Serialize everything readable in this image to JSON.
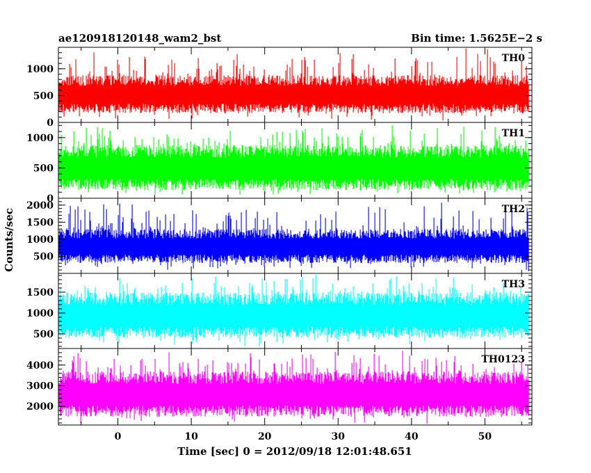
{
  "header": {
    "left": "ae120918120148_wam2_bst",
    "right": "Bin time: 1.5625E−2 s"
  },
  "ylabel": "Counts/sec",
  "xlabel": "Time [sec] 0 = 2012/09/18 12:01:48.651",
  "chart_data": [
    {
      "type": "line",
      "series_name": "TH0",
      "color": "#ff0000",
      "xlim": [
        -8.1,
        56.4
      ],
      "ylim": [
        0,
        1400
      ],
      "yticks": [
        0,
        500,
        1000
      ],
      "ytick_labels": [
        "0",
        "500",
        "1000"
      ],
      "baseline_range": [
        170,
        880
      ],
      "spike_max": 1400,
      "bin_time": 0.015625
    },
    {
      "type": "line",
      "series_name": "TH1",
      "color": "#00ff00",
      "xlim": [
        -8.1,
        56.4
      ],
      "ylim": [
        0,
        1250
      ],
      "yticks": [
        0,
        500,
        1000
      ],
      "ytick_labels": [
        "0",
        "500",
        "1000"
      ],
      "baseline_range": [
        130,
        880
      ],
      "spike_max": 1250,
      "bin_time": 0.015625
    },
    {
      "type": "line",
      "series_name": "TH2",
      "color": "#0000ff",
      "xlim": [
        -8.1,
        56.4
      ],
      "ylim": [
        0,
        2200
      ],
      "yticks": [
        500,
        1000,
        1500,
        2000
      ],
      "ytick_labels": [
        "500",
        "1000",
        "1500",
        "2000"
      ],
      "baseline_range": [
        300,
        1300
      ],
      "spike_max": 2100,
      "bin_time": 0.015625
    },
    {
      "type": "line",
      "series_name": "TH3",
      "color": "#00ffff",
      "xlim": [
        -8.1,
        56.4
      ],
      "ylim": [
        150,
        1950
      ],
      "yticks": [
        500,
        1000,
        1500
      ],
      "ytick_labels": [
        "500",
        "1000",
        "1500"
      ],
      "baseline_range": [
        400,
        1500
      ],
      "spike_max": 1950,
      "bin_time": 0.015625
    },
    {
      "type": "line",
      "series_name": "TH0123",
      "color": "#ff00ff",
      "xlim": [
        -8.1,
        56.4
      ],
      "ylim": [
        1100,
        4800
      ],
      "yticks": [
        2000,
        3000,
        4000
      ],
      "ytick_labels": [
        "2000",
        "3000",
        "4000"
      ],
      "baseline_range": [
        1500,
        3700
      ],
      "spike_max": 4800,
      "bin_time": 0.015625
    }
  ],
  "xaxis": {
    "xlim": [
      -8.1,
      56.4
    ],
    "ticks": [
      0,
      10,
      20,
      30,
      40,
      50
    ],
    "tick_labels": [
      "0",
      "10",
      "20",
      "30",
      "40",
      "50"
    ],
    "data_range": [
      -8,
      56
    ]
  }
}
